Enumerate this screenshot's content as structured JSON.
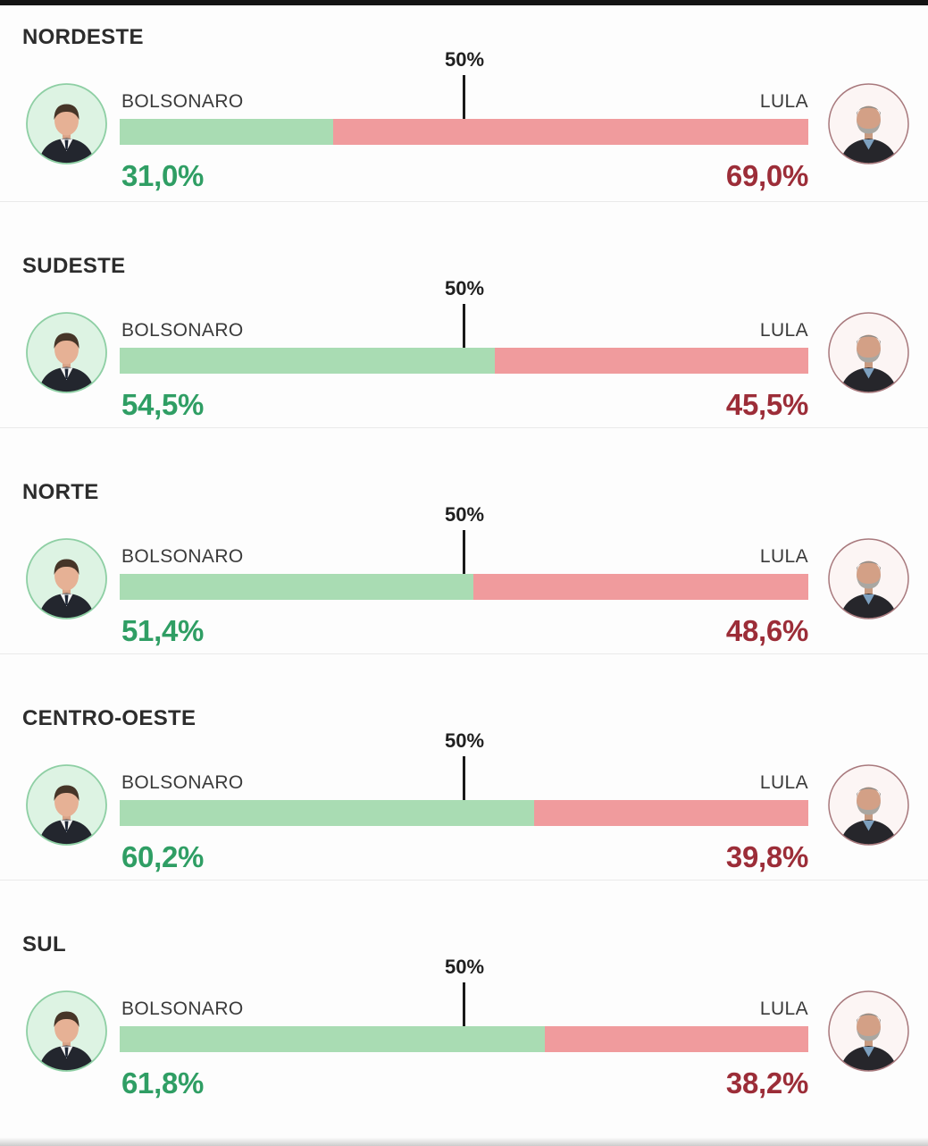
{
  "chart_data": {
    "type": "bar",
    "orientation": "horizontal-stacked",
    "title": "",
    "categories": [
      "NORDESTE",
      "SUDESTE",
      "NORTE",
      "CENTRO-OESTE",
      "SUL"
    ],
    "series": [
      {
        "name": "BOLSONARO",
        "color": "#a9dcb3",
        "values": [
          31.0,
          54.5,
          51.4,
          60.2,
          61.8
        ]
      },
      {
        "name": "LULA",
        "color": "#f09b9d",
        "values": [
          69.0,
          45.5,
          48.6,
          39.8,
          38.2
        ]
      }
    ],
    "value_labels": {
      "bolsonaro": [
        "31,0%",
        "54,5%",
        "51,4%",
        "60,2%",
        "61,8%"
      ],
      "lula": [
        "69,0%",
        "45,5%",
        "48,6%",
        "39,8%",
        "38,2%"
      ]
    },
    "axis_marker_label": "50%",
    "xlim": [
      0,
      100
    ],
    "grid": false,
    "legend_position": "above-bars-inline"
  },
  "candidates": {
    "left": {
      "name": "BOLSONARO",
      "bar_color": "#a9dcb3",
      "text_color": "#2f9e64",
      "avatar_icon": "bolsonaro-portrait"
    },
    "right": {
      "name": "LULA",
      "bar_color": "#f09b9d",
      "text_color": "#9c2d38",
      "avatar_icon": "lula-portrait"
    }
  },
  "marker": {
    "label": "50%",
    "line_color": "#1a1a1a"
  },
  "colors": {
    "divider": "#eaeaea",
    "top_strip": "#141414",
    "bottom_strip": "#cccccc",
    "section_background": "#fdfdfd"
  },
  "regions": [
    {
      "name": "NORDESTE",
      "left_label": "BOLSONARO",
      "right_label": "LULA",
      "marker_label": "50%",
      "left_value": 31.0,
      "right_value": 69.0,
      "left_text": "31,0%",
      "right_text": "69,0%"
    },
    {
      "name": "SUDESTE",
      "left_label": "BOLSONARO",
      "right_label": "LULA",
      "marker_label": "50%",
      "left_value": 54.5,
      "right_value": 45.5,
      "left_text": "54,5%",
      "right_text": "45,5%"
    },
    {
      "name": "NORTE",
      "left_label": "BOLSONARO",
      "right_label": "LULA",
      "marker_label": "50%",
      "left_value": 51.4,
      "right_value": 48.6,
      "left_text": "51,4%",
      "right_text": "48,6%"
    },
    {
      "name": "CENTRO-OESTE",
      "left_label": "BOLSONARO",
      "right_label": "LULA",
      "marker_label": "50%",
      "left_value": 60.2,
      "right_value": 39.8,
      "left_text": "60,2%",
      "right_text": "39,8%"
    },
    {
      "name": "SUL",
      "left_label": "BOLSONARO",
      "right_label": "LULA",
      "marker_label": "50%",
      "left_value": 61.8,
      "right_value": 38.2,
      "left_text": "61,8%",
      "right_text": "38,2%"
    }
  ]
}
